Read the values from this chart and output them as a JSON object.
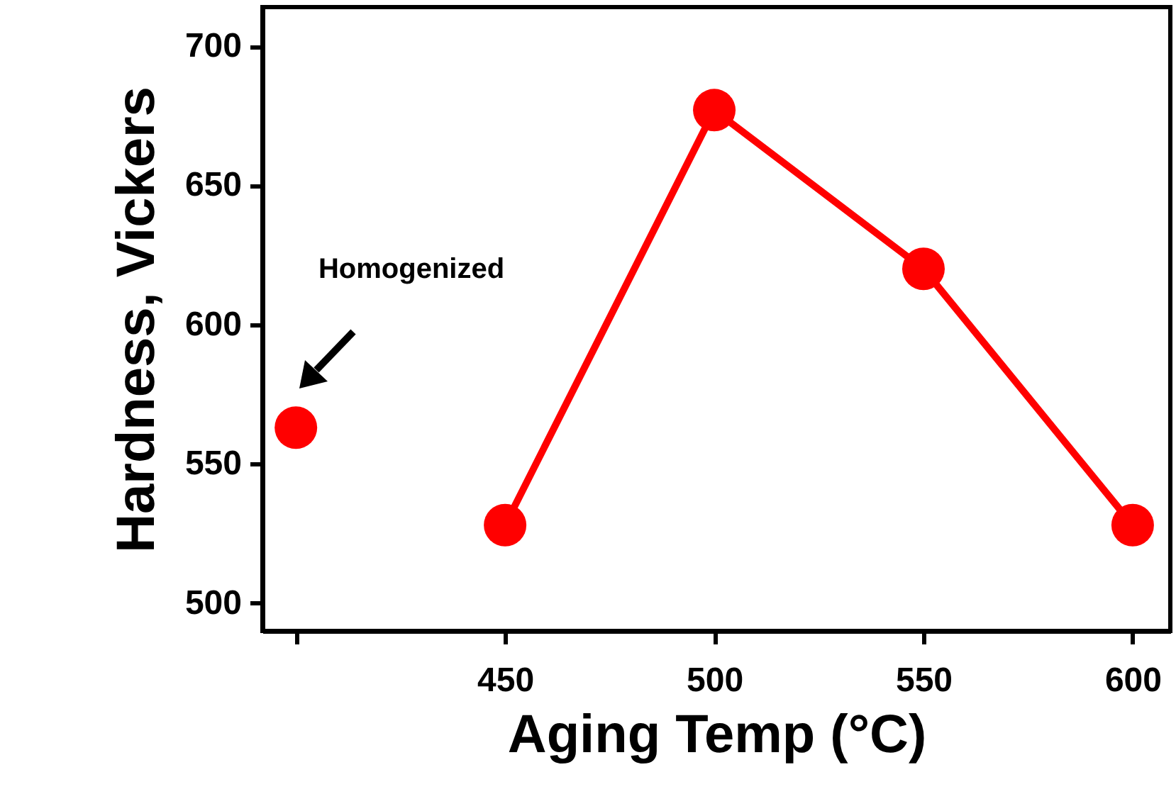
{
  "chart_data": {
    "type": "line",
    "xlabel": "Aging Temp (°C)",
    "ylabel": "Hardness, Vickers",
    "series": [
      {
        "x": [
          450,
          500,
          550,
          600
        ],
        "values": [
          528,
          677,
          620,
          528
        ],
        "color": "#ff0000"
      },
      {
        "type": "scatter",
        "x": [
          400
        ],
        "values": [
          563
        ],
        "color": "#ff0000"
      }
    ],
    "xlim": [
      392,
      609
    ],
    "xticks": [
      {
        "value": 400,
        "label": null
      },
      450,
      500,
      550,
      600
    ],
    "ylim": [
      490,
      714
    ],
    "yticks": [
      500,
      550,
      600,
      650,
      700
    ],
    "grid": false,
    "marker": "circle",
    "line_style": "solid",
    "annotations": [
      "Homogenized"
    ]
  }
}
